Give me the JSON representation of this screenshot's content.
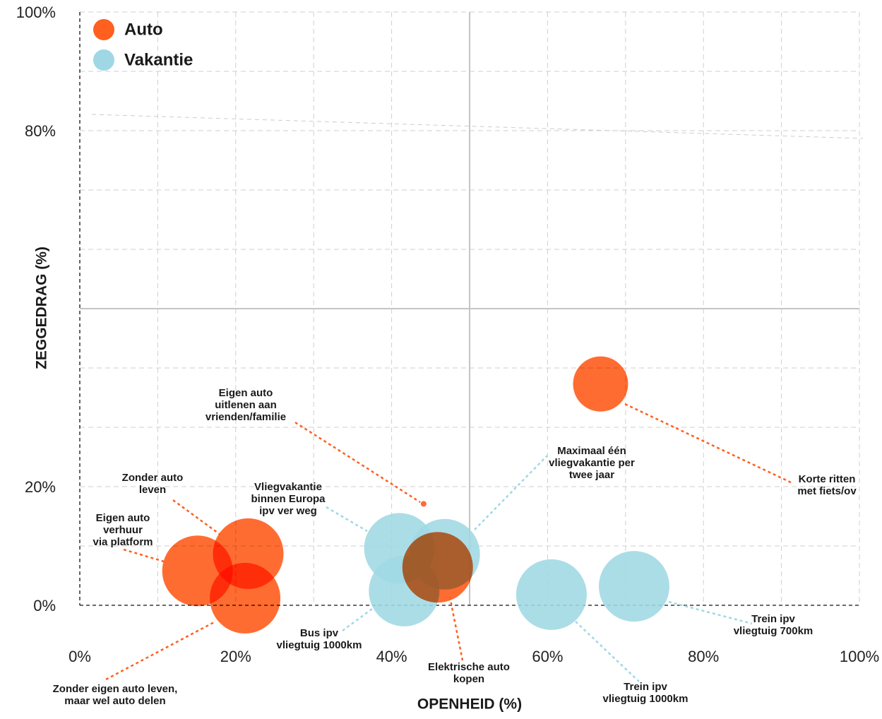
{
  "chart_data": {
    "type": "bubble",
    "xlabel": "OPENHEID (%)",
    "ylabel": "ZEGGEDRAG (%)",
    "xlim": [
      0,
      100
    ],
    "ylim": [
      0,
      100
    ],
    "xticks": [
      {
        "value": 0,
        "label": "0%"
      },
      {
        "value": 20,
        "label": "20%"
      },
      {
        "value": 40,
        "label": "40%"
      },
      {
        "value": 60,
        "label": "60%"
      },
      {
        "value": 80,
        "label": "80%"
      },
      {
        "value": 100,
        "label": "100%"
      }
    ],
    "yticks": [
      {
        "value": 0,
        "label": "0%"
      },
      {
        "value": 20,
        "label": "20%"
      },
      {
        "value": 80,
        "label": "80%"
      },
      {
        "value": 100,
        "label": "100%"
      }
    ],
    "xgrid": [
      10,
      20,
      30,
      40,
      60,
      70,
      80,
      90,
      100
    ],
    "ygrid": [
      10,
      20,
      30,
      40,
      60,
      70,
      80,
      90,
      100
    ],
    "quadrant": {
      "x": 50,
      "y": 50
    },
    "legend": "top-left",
    "series": [
      {
        "name": "Auto",
        "color": "#ff5f1f",
        "x": [
          21.6,
          15.1,
          21.2,
          44.1,
          45.9,
          66.8
        ],
        "values": [
          8.7,
          5.8,
          1.2,
          17.1,
          6.4,
          37.3
        ],
        "sizes": [
          50,
          50,
          50,
          4,
          50,
          39
        ],
        "labels": [
          [
            "Zonder auto",
            "leven"
          ],
          [
            "Eigen auto",
            "verhuur",
            "via platform"
          ],
          [
            "Zonder eigen auto leven,",
            "maar wel auto delen"
          ],
          [
            "Eigen auto",
            "uitlenen aan",
            "vrienden/familie"
          ],
          [
            "Elektrische auto",
            "kopen"
          ],
          [
            "Korte ritten",
            "met fiets/ov"
          ]
        ]
      },
      {
        "name": "Vakantie",
        "color": "#9fd8e4",
        "x": [
          41.0,
          46.8,
          41.6,
          60.5,
          71.1
        ],
        "values": [
          9.6,
          8.6,
          2.4,
          1.8,
          3.2
        ],
        "sizes": [
          50,
          50,
          50,
          50,
          50
        ],
        "labels": [
          [
            "Vliegvakantie",
            "binnen Europa",
            "ipv ver weg"
          ],
          [
            "Maximaal één",
            "vliegvakantie per",
            "twee jaar"
          ],
          [
            "Bus ipv",
            "vliegtuig 1000km"
          ],
          [
            "Trein ipv",
            "vliegtuig 1000km"
          ],
          [
            "Trein ipv",
            "vliegtuig 700km"
          ]
        ]
      }
    ]
  }
}
